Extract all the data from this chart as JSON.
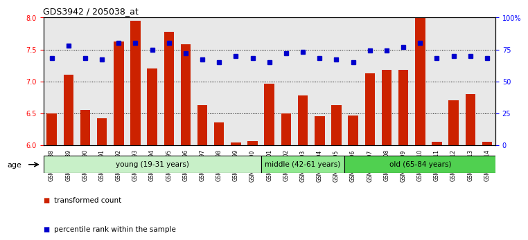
{
  "title": "GDS3942 / 205038_at",
  "samples": [
    "GSM812988",
    "GSM812989",
    "GSM812990",
    "GSM812991",
    "GSM812992",
    "GSM812993",
    "GSM812994",
    "GSM812995",
    "GSM812996",
    "GSM812997",
    "GSM812998",
    "GSM812999",
    "GSM813000",
    "GSM813001",
    "GSM813002",
    "GSM813003",
    "GSM813004",
    "GSM813005",
    "GSM813006",
    "GSM813007",
    "GSM813008",
    "GSM813009",
    "GSM813010",
    "GSM813011",
    "GSM813012",
    "GSM813013",
    "GSM813014"
  ],
  "bar_values": [
    6.5,
    7.1,
    6.55,
    6.42,
    7.62,
    7.95,
    7.2,
    7.78,
    7.58,
    6.62,
    6.35,
    6.04,
    6.06,
    6.96,
    6.5,
    6.78,
    6.45,
    6.62,
    6.46,
    7.12,
    7.18,
    7.18,
    8.0,
    6.05,
    6.7,
    6.8,
    6.05
  ],
  "dot_values": [
    68,
    78,
    68,
    67,
    80,
    80,
    75,
    80,
    72,
    67,
    65,
    70,
    68,
    65,
    72,
    73,
    68,
    67,
    65,
    74,
    74,
    77,
    80,
    68,
    70,
    70,
    68
  ],
  "groups": [
    {
      "label": "young (19-31 years)",
      "start": 0,
      "end": 13,
      "color": "#c8f0c8"
    },
    {
      "label": "middle (42-61 years)",
      "start": 13,
      "end": 18,
      "color": "#90e890"
    },
    {
      "label": "old (65-84 years)",
      "start": 18,
      "end": 27,
      "color": "#50d050"
    }
  ],
  "ylim_left": [
    6.0,
    8.0
  ],
  "ylim_right": [
    0,
    100
  ],
  "yticks_left": [
    6.0,
    6.5,
    7.0,
    7.5,
    8.0
  ],
  "yticks_right": [
    0,
    25,
    50,
    75,
    100
  ],
  "ytick_labels_right": [
    "0",
    "25",
    "50",
    "75",
    "100%"
  ],
  "bar_color": "#cc2200",
  "dot_color": "#0000cc",
  "gridlines": [
    6.5,
    7.0,
    7.5
  ],
  "legend_items": [
    {
      "color": "#cc2200",
      "label": "transformed count"
    },
    {
      "color": "#0000cc",
      "label": "percentile rank within the sample"
    }
  ],
  "plot_bg_color": "#e8e8e8"
}
